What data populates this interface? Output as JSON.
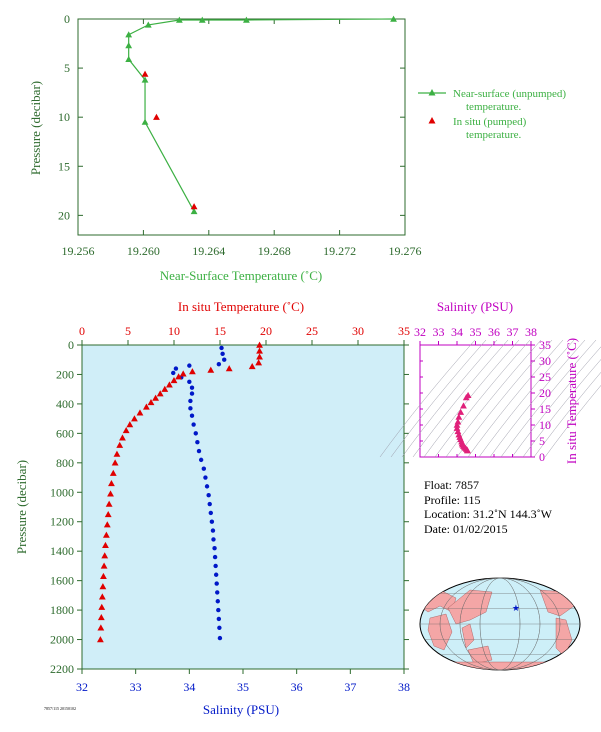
{
  "colors": {
    "green": "#3cb043",
    "axis_green": "#2e6b2e",
    "red": "#e00000",
    "blue": "#0018c8",
    "magenta": "#c000c0",
    "panel_bg": "#d0eef8",
    "land": "#f4a6a6",
    "ocean": "#cdeff8"
  },
  "chart_data": [
    {
      "type": "line",
      "xlabel": "Near-Surface Temperature (˚C)",
      "ylabel": "Pressure (decibar)",
      "xlim": [
        19.256,
        19.276
      ],
      "ylim": [
        22,
        0
      ],
      "xticks": [
        "19.256",
        "19.260",
        "19.264",
        "19.268",
        "19.272",
        "19.276"
      ],
      "xtick_values": [
        19.256,
        19.26,
        19.264,
        19.268,
        19.272,
        19.276
      ],
      "yticks": [
        "0",
        "5",
        "10",
        "15",
        "20"
      ],
      "ytick_values": [
        0,
        5,
        10,
        15,
        20
      ],
      "legend_position": "right",
      "series": [
        {
          "name": "Near-surface (unpumped) temperature.",
          "marker": "triangle",
          "points": [
            [
              19.2753,
              0
            ],
            [
              19.2663,
              0.1
            ],
            [
              19.2636,
              0.1
            ],
            [
              19.2622,
              0.1
            ],
            [
              19.2603,
              0.6
            ],
            [
              19.2591,
              1.6
            ],
            [
              19.2591,
              2.7
            ],
            [
              19.2591,
              4.1
            ],
            [
              19.2601,
              6.2
            ],
            [
              19.2601,
              10.5
            ],
            [
              19.2631,
              19.6
            ]
          ]
        },
        {
          "name": "In situ (pumped) temperature.",
          "marker": "triangle",
          "points": [
            [
              19.2601,
              5.6
            ],
            [
              19.2608,
              10.0
            ],
            [
              19.2631,
              19.1
            ]
          ]
        }
      ]
    },
    {
      "type": "scatter",
      "top_xlabel": "In situ Temperature (˚C)",
      "xlabel": "Salinity (PSU)",
      "ylabel": "Pressure (decibar)",
      "temp_lim": [
        0,
        35
      ],
      "temp_ticks": [
        "0",
        "5",
        "10",
        "15",
        "20",
        "25",
        "30",
        "35"
      ],
      "temp_tick_values": [
        0,
        5,
        10,
        15,
        20,
        25,
        30,
        35
      ],
      "sal_lim": [
        32,
        38
      ],
      "sal_ticks": [
        "32",
        "33",
        "34",
        "35",
        "36",
        "37",
        "38"
      ],
      "sal_tick_values": [
        32,
        33,
        34,
        35,
        36,
        37,
        38
      ],
      "ylim": [
        2200,
        0
      ],
      "yticks": [
        "0",
        "200",
        "400",
        "600",
        "800",
        "1000",
        "1200",
        "1400",
        "1600",
        "1800",
        "2000",
        "2200"
      ],
      "ytick_values": [
        0,
        200,
        400,
        600,
        800,
        1000,
        1200,
        1400,
        1600,
        1800,
        2000,
        2200
      ],
      "temperature_profile": [
        [
          19.3,
          0
        ],
        [
          19.3,
          40
        ],
        [
          19.3,
          80
        ],
        [
          19.2,
          120
        ],
        [
          18.5,
          145
        ],
        [
          16,
          160
        ],
        [
          14,
          170
        ],
        [
          12,
          180
        ],
        [
          11,
          195
        ],
        [
          10.5,
          215
        ],
        [
          10,
          240
        ],
        [
          9.5,
          270
        ],
        [
          9,
          300
        ],
        [
          8.5,
          330
        ],
        [
          8,
          360
        ],
        [
          7.5,
          390
        ],
        [
          7,
          420
        ],
        [
          6.3,
          460
        ],
        [
          5.7,
          500
        ],
        [
          5.2,
          540
        ],
        [
          4.8,
          580
        ],
        [
          4.4,
          630
        ],
        [
          4.1,
          680
        ],
        [
          3.8,
          740
        ],
        [
          3.6,
          800
        ],
        [
          3.4,
          870
        ],
        [
          3.2,
          940
        ],
        [
          3.1,
          1010
        ],
        [
          2.95,
          1080
        ],
        [
          2.85,
          1150
        ],
        [
          2.75,
          1220
        ],
        [
          2.65,
          1290
        ],
        [
          2.55,
          1360
        ],
        [
          2.47,
          1430
        ],
        [
          2.4,
          1500
        ],
        [
          2.33,
          1570
        ],
        [
          2.27,
          1640
        ],
        [
          2.21,
          1710
        ],
        [
          2.15,
          1780
        ],
        [
          2.1,
          1850
        ],
        [
          2.05,
          1920
        ],
        [
          2.0,
          2000
        ]
      ],
      "salinity_profile": [
        [
          34.6,
          20
        ],
        [
          34.62,
          60
        ],
        [
          34.65,
          100
        ],
        [
          34.55,
          130
        ],
        [
          34.0,
          140
        ],
        [
          33.75,
          160
        ],
        [
          33.7,
          190
        ],
        [
          33.85,
          220
        ],
        [
          34.0,
          250
        ],
        [
          34.05,
          290
        ],
        [
          34.05,
          330
        ],
        [
          34.02,
          380
        ],
        [
          34.02,
          430
        ],
        [
          34.05,
          480
        ],
        [
          34.08,
          540
        ],
        [
          34.12,
          600
        ],
        [
          34.15,
          660
        ],
        [
          34.18,
          720
        ],
        [
          34.22,
          780
        ],
        [
          34.27,
          840
        ],
        [
          34.3,
          900
        ],
        [
          34.33,
          960
        ],
        [
          34.36,
          1020
        ],
        [
          34.38,
          1080
        ],
        [
          34.4,
          1140
        ],
        [
          34.42,
          1200
        ],
        [
          34.44,
          1260
        ],
        [
          34.45,
          1320
        ],
        [
          34.47,
          1380
        ],
        [
          34.48,
          1440
        ],
        [
          34.49,
          1500
        ],
        [
          34.5,
          1560
        ],
        [
          34.51,
          1620
        ],
        [
          34.52,
          1680
        ],
        [
          34.53,
          1740
        ],
        [
          34.54,
          1800
        ],
        [
          34.55,
          1860
        ],
        [
          34.56,
          1920
        ],
        [
          34.57,
          1990
        ]
      ]
    },
    {
      "type": "scatter",
      "xlabel": "Salinity (PSU)",
      "ylabel": "In situ Temperature (˚C)",
      "xlim": [
        32,
        38
      ],
      "ylim": [
        0,
        35
      ],
      "xticks": [
        "32",
        "33",
        "34",
        "35",
        "36",
        "37",
        "38"
      ],
      "xtick_values": [
        32,
        33,
        34,
        35,
        36,
        37,
        38
      ],
      "yticks": [
        "0",
        "5",
        "10",
        "15",
        "20",
        "25",
        "30",
        "35"
      ],
      "ytick_values": [
        0,
        5,
        10,
        15,
        20,
        25,
        30,
        35
      ],
      "points": [
        [
          34.6,
          19.3
        ],
        [
          34.5,
          18.6
        ],
        [
          34.35,
          16
        ],
        [
          34.2,
          14
        ],
        [
          34.1,
          12.5
        ],
        [
          34.05,
          11
        ],
        [
          34.0,
          10
        ],
        [
          34.0,
          9
        ],
        [
          34.05,
          8
        ],
        [
          34.1,
          7
        ],
        [
          34.15,
          6.2
        ],
        [
          34.2,
          5.5
        ],
        [
          34.25,
          4.8
        ],
        [
          34.28,
          4.2
        ],
        [
          34.3,
          3.8
        ],
        [
          34.35,
          3.4
        ],
        [
          34.4,
          3.1
        ],
        [
          34.45,
          2.8
        ],
        [
          34.5,
          2.5
        ],
        [
          34.55,
          2.2
        ],
        [
          34.57,
          2.0
        ]
      ]
    }
  ],
  "info": {
    "float": "Float:  7857",
    "profile": "Profile:  115",
    "location": "Location:  31.2˚N  144.3˚W",
    "date": "Date:  01/02/2015"
  },
  "map": {
    "marker_lon": -144.3,
    "marker_lat": 31.2
  },
  "footer": {
    "tiny_text": "7857/115 20150102"
  }
}
